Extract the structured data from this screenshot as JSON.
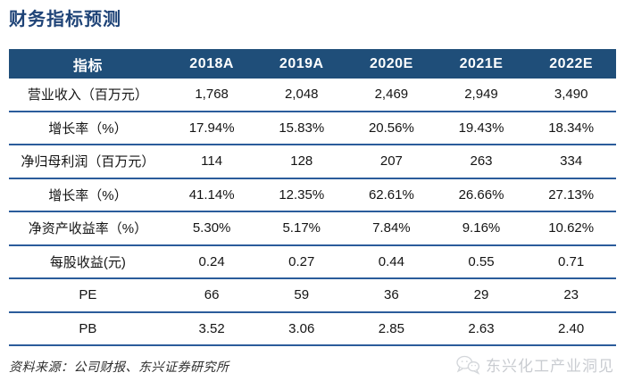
{
  "title": "财务指标预测",
  "colors": {
    "header_bg": "#1F4E79",
    "row_line": "#2B5C9B",
    "title_text": "#1E4377",
    "watermark_text": "#C9CCD1"
  },
  "table": {
    "columns": [
      "指标",
      "2018A",
      "2019A",
      "2020E",
      "2021E",
      "2022E"
    ],
    "rows": [
      {
        "label": "营业收入（百万元）",
        "values": [
          "1,768",
          "2,048",
          "2,469",
          "2,949",
          "3,490"
        ]
      },
      {
        "label": "增长率（%）",
        "values": [
          "17.94%",
          "15.83%",
          "20.56%",
          "19.43%",
          "18.34%"
        ]
      },
      {
        "label": "净归母利润（百万元）",
        "values": [
          "114",
          "128",
          "207",
          "263",
          "334"
        ]
      },
      {
        "label": "增长率（%）",
        "values": [
          "41.14%",
          "12.35%",
          "62.61%",
          "26.66%",
          "27.13%"
        ]
      },
      {
        "label": "净资产收益率（%）",
        "values": [
          "5.30%",
          "5.17%",
          "7.84%",
          "9.16%",
          "10.62%"
        ]
      },
      {
        "label": "每股收益(元)",
        "values": [
          "0.24",
          "0.27",
          "0.44",
          "0.55",
          "0.71"
        ]
      },
      {
        "label": "PE",
        "values": [
          "66",
          "59",
          "36",
          "29",
          "23"
        ]
      },
      {
        "label": "PB",
        "values": [
          "3.52",
          "3.06",
          "2.85",
          "2.63",
          "2.40"
        ]
      }
    ]
  },
  "footer": {
    "source": "资料来源：公司财报、东兴证券研究所",
    "watermark": "东兴化工产业洞见",
    "watermark_icon": "wechat-icon"
  }
}
